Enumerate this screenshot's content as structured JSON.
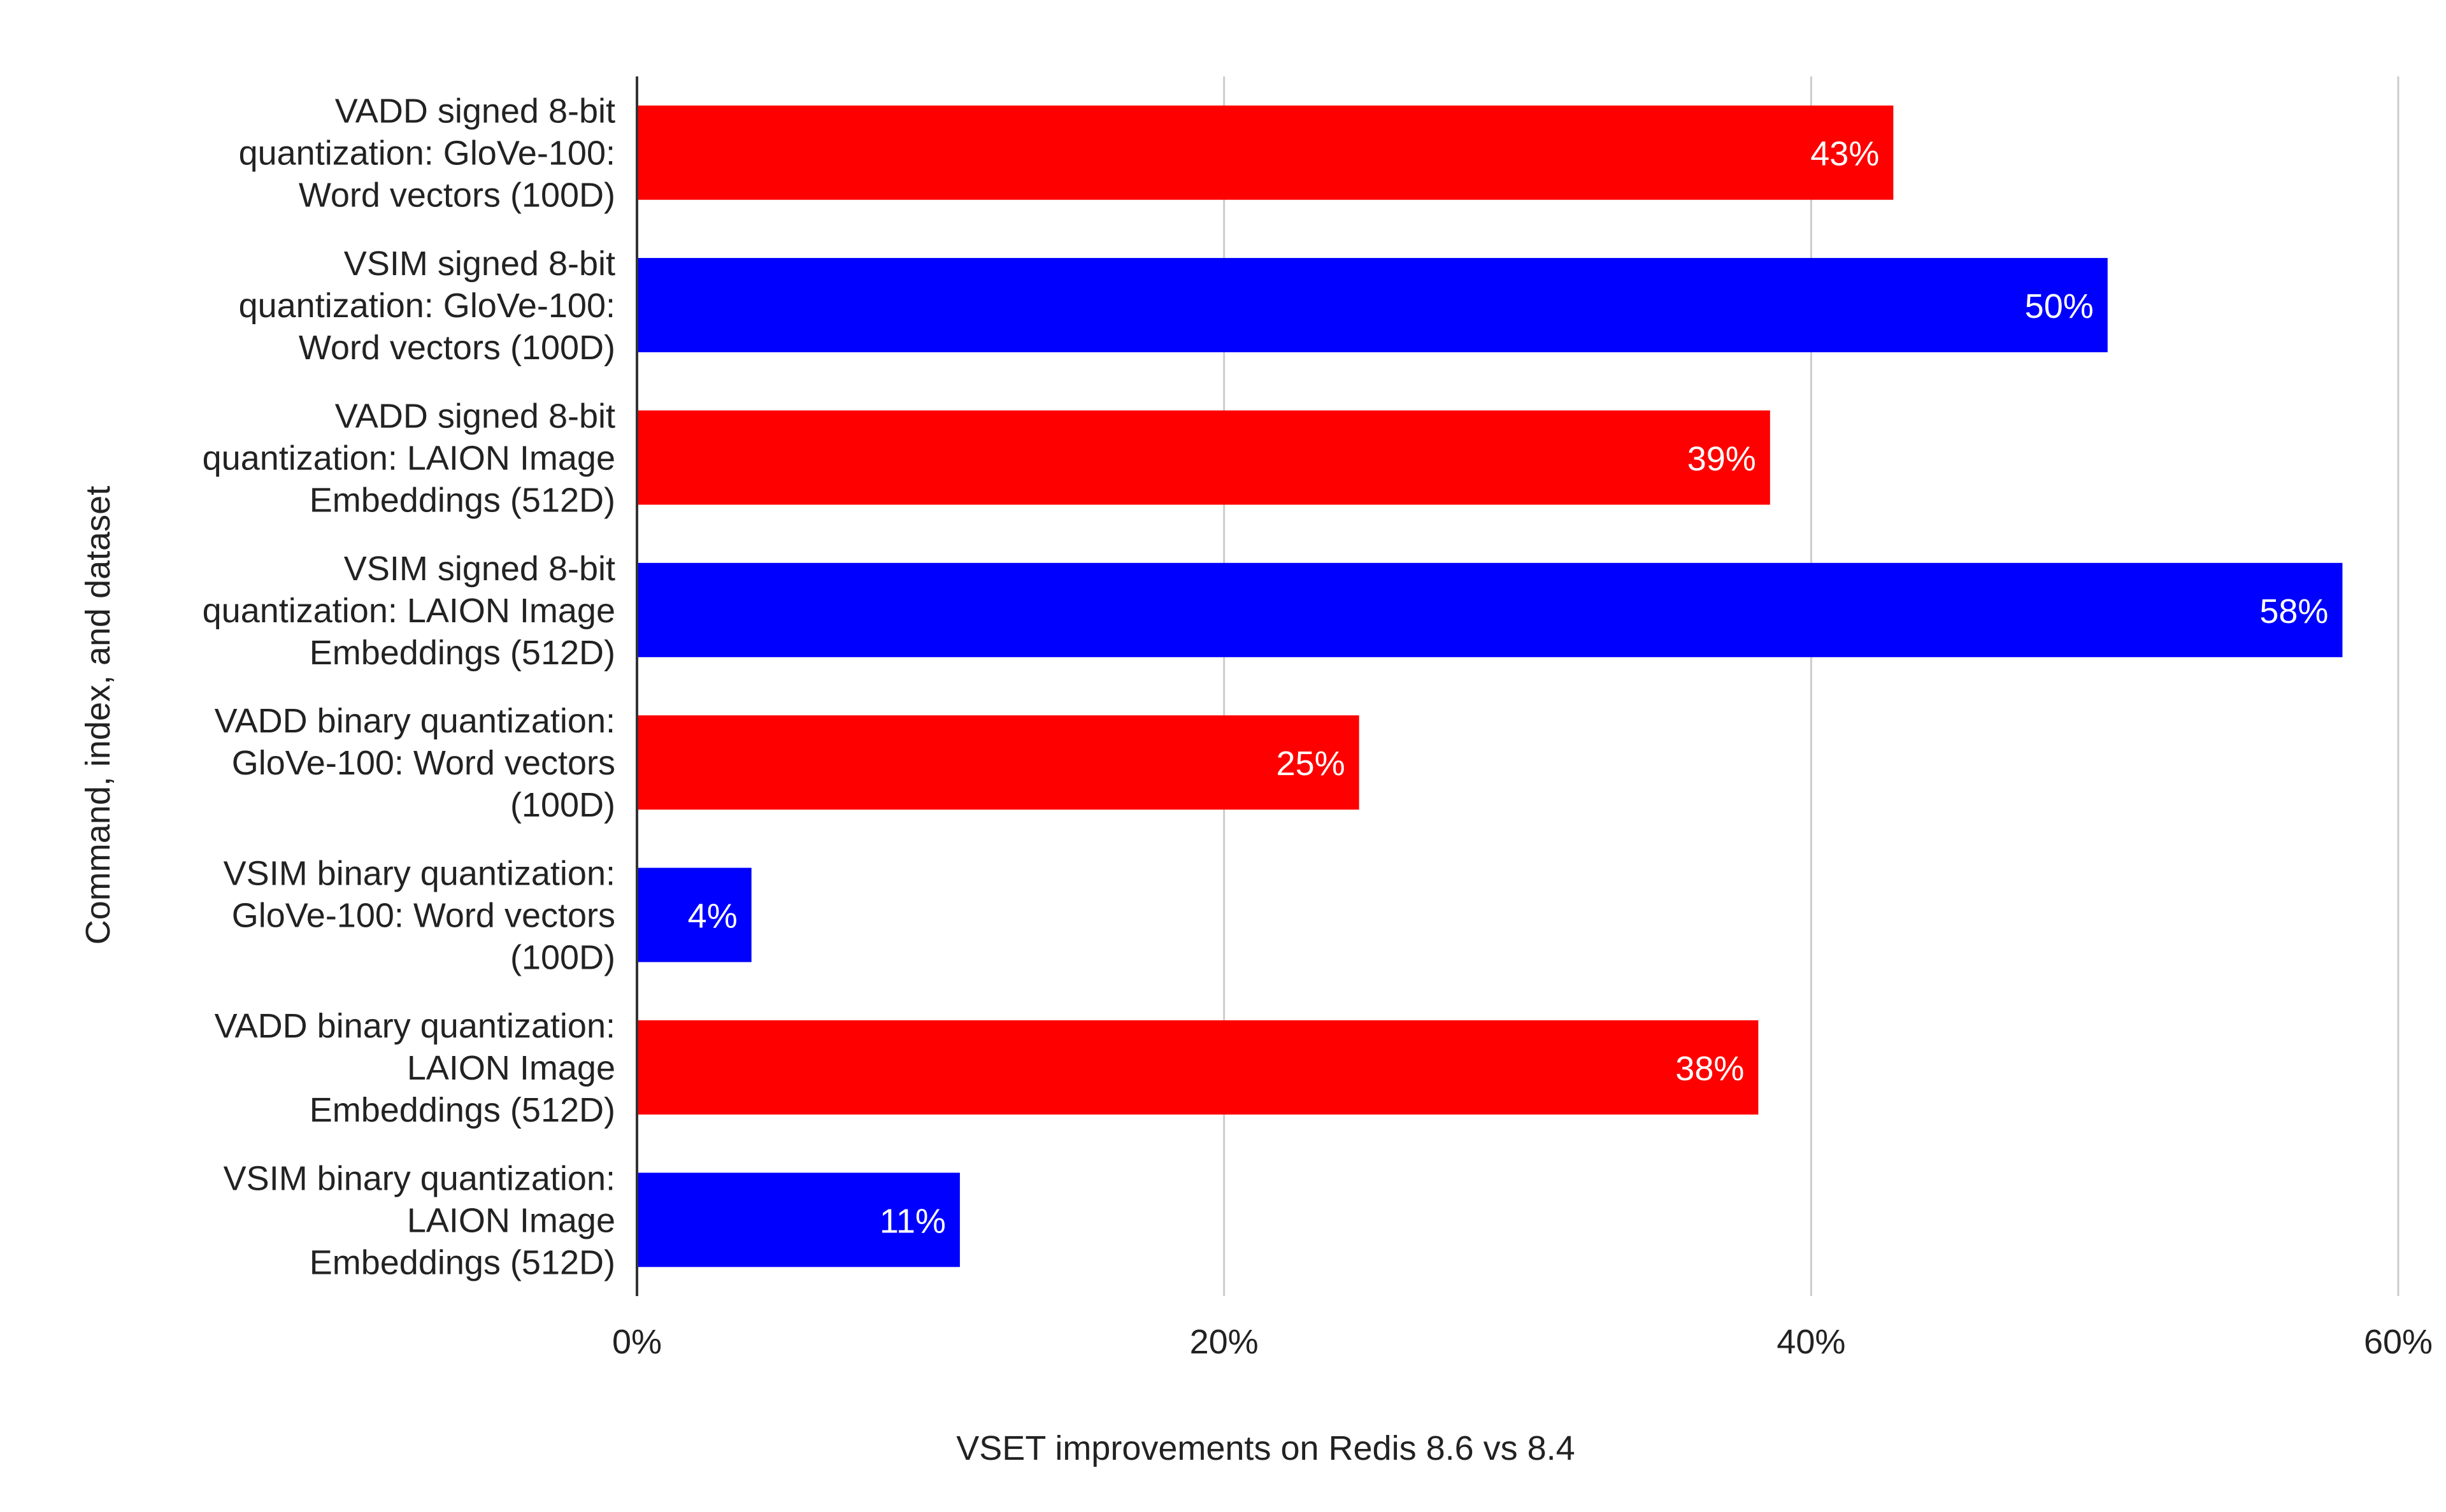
{
  "chart_data": {
    "type": "bar",
    "orientation": "horizontal",
    "title": "",
    "xlabel": "VSET improvements on Redis 8.6 vs 8.4",
    "ylabel": "Command, index, and dataset",
    "xlim": [
      0,
      60
    ],
    "xticks": [
      0,
      20,
      40,
      60
    ],
    "xtick_labels": [
      "0%",
      "20%",
      "40%",
      "60%"
    ],
    "grid": true,
    "legend": "none",
    "categories": [
      [
        "VADD signed 8-bit",
        "quantization: GloVe-100:",
        "Word vectors (100D)"
      ],
      [
        "VSIM signed 8-bit",
        "quantization: GloVe-100:",
        "Word vectors (100D)"
      ],
      [
        "VADD signed 8-bit",
        "quantization: LAION Image",
        "Embeddings (512D)"
      ],
      [
        "VSIM signed 8-bit",
        "quantization: LAION Image",
        "Embeddings (512D)"
      ],
      [
        "VADD binary quantization:",
        "GloVe-100: Word vectors",
        "(100D)"
      ],
      [
        "VSIM binary quantization:",
        "GloVe-100: Word vectors",
        "(100D)"
      ],
      [
        "VADD binary quantization:",
        "LAION Image",
        "Embeddings (512D)"
      ],
      [
        "VSIM binary quantization:",
        "LAION Image",
        "Embeddings (512D)"
      ]
    ],
    "values": [
      42.8,
      50.1,
      38.6,
      58.1,
      24.6,
      3.9,
      38.2,
      11.0
    ],
    "data_labels": [
      "43%",
      "50%",
      "39%",
      "58%",
      "25%",
      "4%",
      "38%",
      "11%"
    ],
    "bar_colors": [
      "#ff0000",
      "#0000ff",
      "#ff0000",
      "#0000ff",
      "#ff0000",
      "#0000ff",
      "#ff0000",
      "#0000ff"
    ],
    "grid_color": "#cccccc",
    "axis_color": "#333333"
  }
}
